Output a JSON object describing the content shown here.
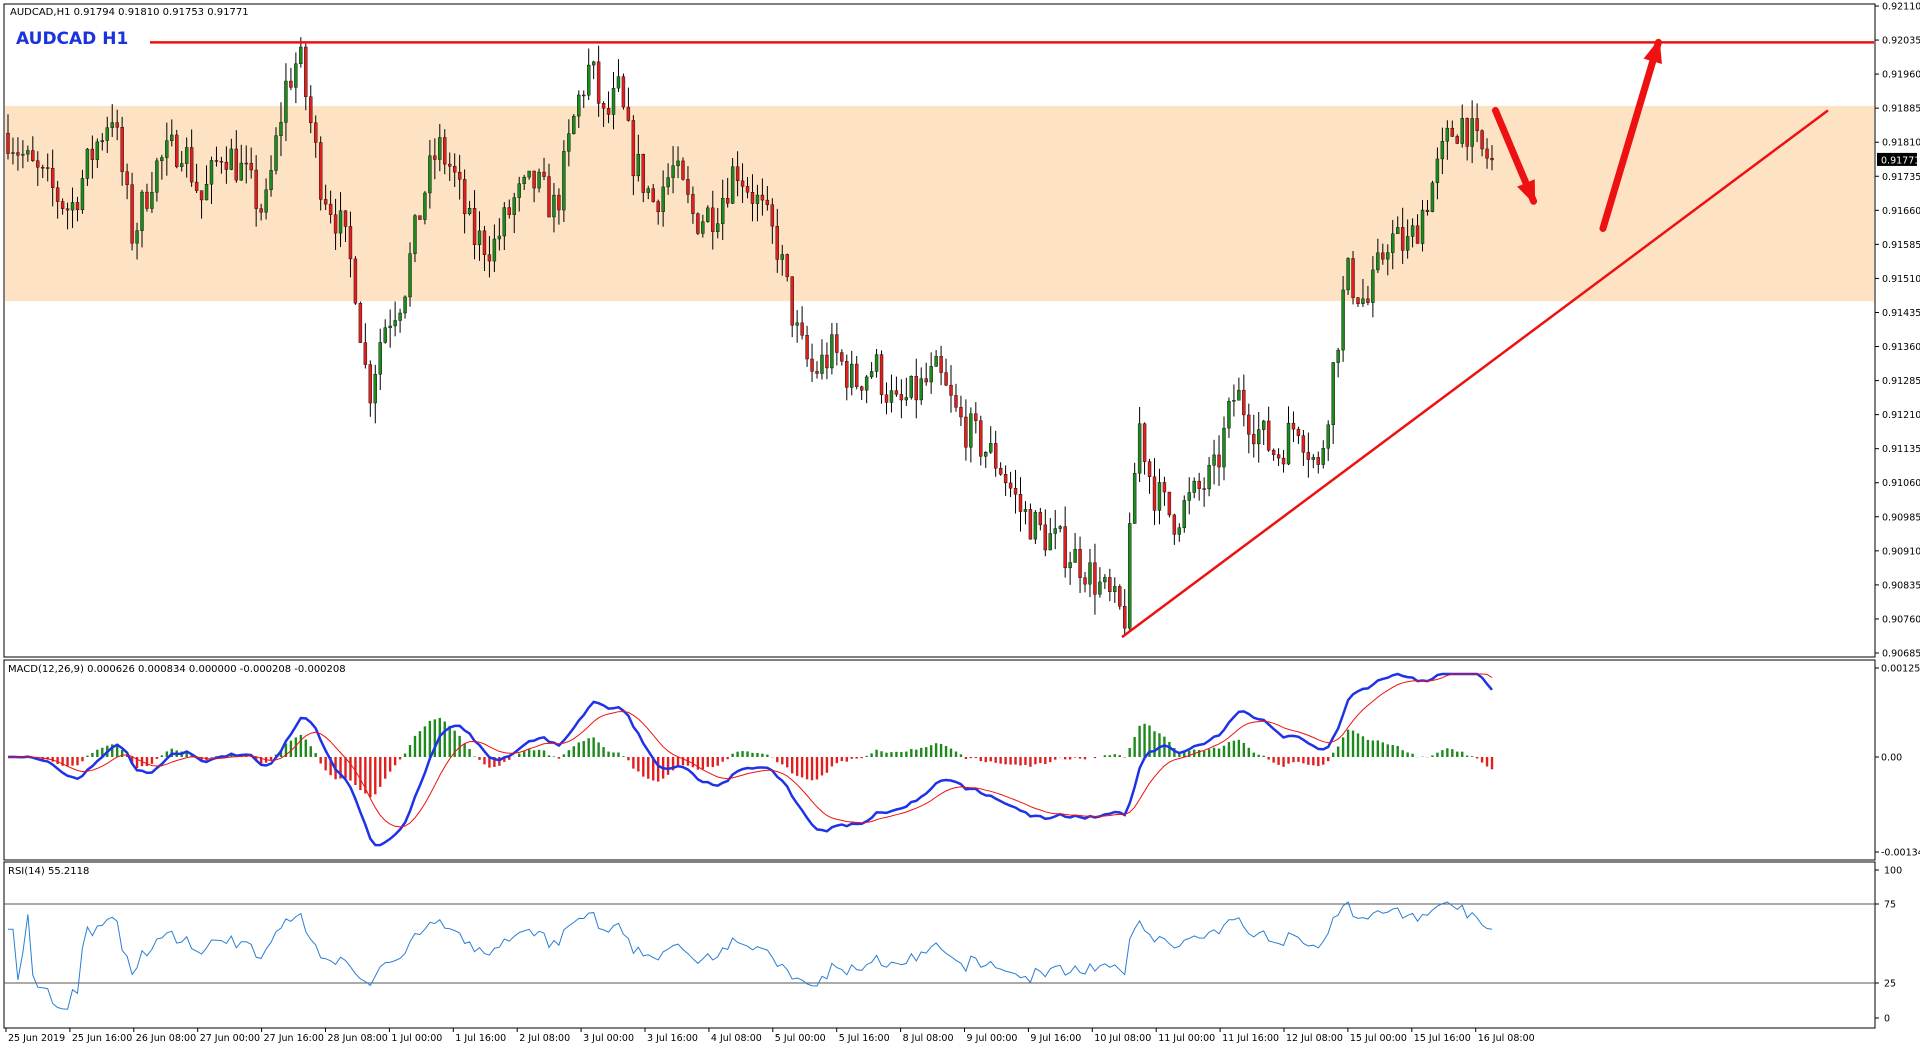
{
  "header": {
    "symbol_info": "AUDCAD,H1  0.91794 0.91810 0.91753 0.91771",
    "big_label": "AUDCAD    H1"
  },
  "colors": {
    "bull": "#1e8a1e",
    "bear": "#e0201e",
    "wick": "#000000",
    "zone": "#fde3c4",
    "annotation": "#ee1111",
    "macd_line": "#1e32e8",
    "signal_line": "#ee1111",
    "rsi_line": "#2a7fd4",
    "title_blue": "#1a33dd"
  },
  "macd": {
    "label": "MACD(12,26,9) 0.000626 0.000834 0.000000 -0.000208 -0.000208",
    "axis_labels": [
      "0.001256",
      "0.00",
      "-0.001349"
    ]
  },
  "rsi": {
    "label": "RSI(14) 55.2118",
    "axis_labels": [
      "100",
      "75",
      "25",
      "0"
    ],
    "levels": [
      75,
      25
    ]
  },
  "chart_data": {
    "type": "candlestick",
    "symbol": "AUDCAD",
    "timeframe": "H1",
    "ylim": [
      0.90685,
      0.9211
    ],
    "y_ticks": [
      "0.92110",
      "0.92035",
      "0.91960",
      "0.91885",
      "0.91810",
      "0.91735",
      "0.91660",
      "0.91585",
      "0.91510",
      "0.91435",
      "0.91360",
      "0.91285",
      "0.91210",
      "0.91135",
      "0.91060",
      "0.90985",
      "0.90910",
      "0.90835",
      "0.90760",
      "0.90685"
    ],
    "current_price": "0.91771",
    "x_labels": [
      "25 Jun 2019",
      "25 Jun 16:00",
      "26 Jun 08:00",
      "27 Jun 00:00",
      "27 Jun 16:00",
      "28 Jun 08:00",
      "1 Jul 00:00",
      "1 Jul 16:00",
      "2 Jul 08:00",
      "3 Jul 00:00",
      "3 Jul 16:00",
      "4 Jul 08:00",
      "5 Jul 00:00",
      "5 Jul 16:00",
      "8 Jul 08:00",
      "9 Jul 00:00",
      "9 Jul 16:00",
      "10 Jul 08:00",
      "11 Jul 00:00",
      "11 Jul 16:00",
      "12 Jul 08:00",
      "15 Jul 00:00",
      "15 Jul 16:00",
      "16 Jul 08:00"
    ],
    "resistance_level": 0.9203,
    "supply_zone": [
      0.9146,
      0.9189
    ],
    "trendline": {
      "from": [
        0,
        0.9072
      ],
      "to": [
        1,
        0.9188
      ]
    },
    "price_path": [
      [
        0,
        0.9183
      ],
      [
        0.03,
        0.9176
      ],
      [
        0.06,
        0.9171
      ],
      [
        0.09,
        0.9166
      ],
      [
        0.12,
        0.9178
      ],
      [
        0.15,
        0.9188
      ],
      [
        0.18,
        0.916
      ],
      [
        0.21,
        0.9175
      ],
      [
        0.25,
        0.9181
      ],
      [
        0.28,
        0.9168
      ],
      [
        0.31,
        0.918
      ],
      [
        0.34,
        0.9174
      ],
      [
        0.37,
        0.9165
      ],
      [
        0.4,
        0.9193
      ],
      [
        0.42,
        0.92
      ],
      [
        0.45,
        0.9173
      ],
      [
        0.48,
        0.9162
      ],
      [
        0.5,
        0.9151
      ],
      [
        0.52,
        0.9125
      ],
      [
        0.54,
        0.914
      ],
      [
        0.57,
        0.9148
      ],
      [
        0.6,
        0.917
      ],
      [
        0.62,
        0.918
      ],
      [
        0.64,
        0.9175
      ],
      [
        0.67,
        0.916
      ],
      [
        0.7,
        0.9158
      ],
      [
        0.73,
        0.9168
      ],
      [
        0.76,
        0.9172
      ],
      [
        0.79,
        0.9166
      ],
      [
        0.82,
        0.9189
      ],
      [
        0.84,
        0.9198
      ],
      [
        0.86,
        0.9185
      ],
      [
        0.88,
        0.9192
      ],
      [
        0.9,
        0.9178
      ],
      [
        0.93,
        0.9168
      ],
      [
        0.96,
        0.9175
      ],
      [
        0.99,
        0.9164
      ],
      [
        1.02,
        0.9166
      ],
      [
        1.05,
        0.9176
      ],
      [
        1.08,
        0.9168
      ],
      [
        1.11,
        0.9158
      ],
      [
        1.14,
        0.9137
      ],
      [
        1.16,
        0.913
      ],
      [
        1.19,
        0.9135
      ],
      [
        1.22,
        0.9128
      ],
      [
        1.25,
        0.9132
      ],
      [
        1.28,
        0.9122
      ],
      [
        1.31,
        0.9126
      ],
      [
        1.34,
        0.913
      ],
      [
        1.37,
        0.912
      ],
      [
        1.4,
        0.9115
      ],
      [
        1.43,
        0.911
      ],
      [
        1.46,
        0.91
      ],
      [
        1.49,
        0.9095
      ],
      [
        1.52,
        0.9092
      ],
      [
        1.55,
        0.9088
      ],
      [
        1.58,
        0.9082
      ],
      [
        1.61,
        0.9076
      ],
      [
        1.63,
        0.912
      ],
      [
        1.65,
        0.9105
      ],
      [
        1.68,
        0.9098
      ],
      [
        1.71,
        0.9103
      ],
      [
        1.74,
        0.9108
      ],
      [
        1.77,
        0.9126
      ],
      [
        1.8,
        0.9118
      ],
      [
        1.83,
        0.9112
      ],
      [
        1.86,
        0.912
      ],
      [
        1.89,
        0.9108
      ],
      [
        1.91,
        0.913
      ],
      [
        1.93,
        0.9152
      ],
      [
        1.96,
        0.9145
      ],
      [
        1.99,
        0.916
      ],
      [
        2.02,
        0.9158
      ],
      [
        2.05,
        0.917
      ],
      [
        2.08,
        0.9183
      ],
      [
        2.1,
        0.9186
      ],
      [
        2.12,
        0.9179
      ],
      [
        2.14,
        0.9177
      ]
    ],
    "annotation_arrows": [
      {
        "from": [
          2.145,
          0.9188
        ],
        "to": [
          2.2,
          0.9168
        ],
        "direction": "down"
      },
      {
        "from": [
          2.3,
          0.9162
        ],
        "to": [
          2.38,
          0.9203
        ],
        "direction": "up"
      }
    ]
  }
}
